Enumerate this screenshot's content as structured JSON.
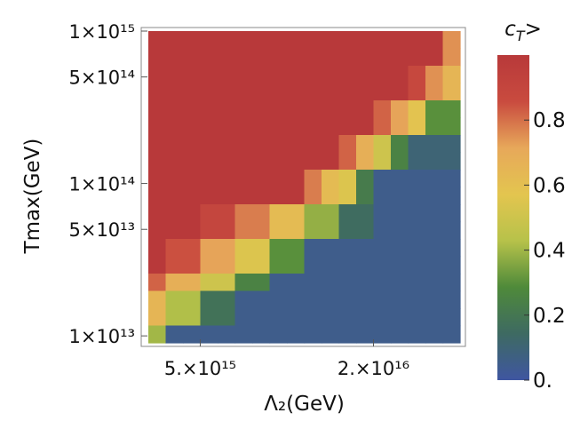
{
  "chart_data": {
    "type": "heatmap",
    "title": "",
    "xlabel": "Λ₂(GeV)",
    "ylabel": "Tmax(GeV)",
    "x_scale": "log",
    "y_scale": "log",
    "xlim": [
      3300000000000000.0,
      4e+16
    ],
    "ylim": [
      9000000000000.0,
      1000000000000000.0
    ],
    "x_ticks": [
      {
        "value": 5000000000000000.0,
        "label": "5.×10¹⁵"
      },
      {
        "value": 2e+16,
        "label": "2.×10¹⁶"
      }
    ],
    "y_ticks": [
      {
        "value": 1000000000000000.0,
        "label": "1×10¹⁵"
      },
      {
        "value": 500000000000000.0,
        "label": "5×10¹⁴"
      },
      {
        "value": 100000000000000.0,
        "label": "1×10¹⁴"
      },
      {
        "value": 50000000000000.0,
        "label": "5×10¹³"
      },
      {
        "value": 10000000000000.0,
        "label": "1×10¹³"
      }
    ],
    "colorbar": {
      "label": "c_T>",
      "range": [
        0,
        1
      ],
      "ticks": [
        {
          "value": 0.0,
          "label": "0."
        },
        {
          "value": 0.2,
          "label": "0.2"
        },
        {
          "value": 0.4,
          "label": "0.4"
        },
        {
          "value": 0.6,
          "label": "0.6"
        },
        {
          "value": 0.8,
          "label": "0.8"
        }
      ],
      "colors": [
        "#3f56a1",
        "#3e6a62",
        "#4f8a3a",
        "#b7c24a",
        "#e3c54f",
        "#e7a85a",
        "#c94b3f",
        "#b8393a"
      ]
    },
    "grid_columns": 18,
    "grid_rows": 18,
    "values_note_rows_top_to_bottom": true,
    "values": [
      [
        1,
        1,
        1,
        1,
        1,
        1,
        1,
        1,
        1,
        1,
        1,
        1,
        1,
        1,
        1,
        1,
        1,
        0.75
      ],
      [
        1,
        1,
        1,
        1,
        1,
        1,
        1,
        1,
        1,
        1,
        1,
        1,
        1,
        1,
        1,
        1,
        1,
        0.75
      ],
      [
        1,
        1,
        1,
        1,
        1,
        1,
        1,
        1,
        1,
        1,
        1,
        1,
        1,
        1,
        1,
        0.88,
        0.75,
        0.65
      ],
      [
        1,
        1,
        1,
        1,
        1,
        1,
        1,
        1,
        1,
        1,
        1,
        1,
        1,
        1,
        1,
        0.88,
        0.75,
        0.65
      ],
      [
        1,
        1,
        1,
        1,
        1,
        1,
        1,
        1,
        1,
        1,
        1,
        1,
        1,
        0.82,
        0.72,
        0.58,
        0.3,
        0.3
      ],
      [
        1,
        1,
        1,
        1,
        1,
        1,
        1,
        1,
        1,
        1,
        1,
        1,
        1,
        0.82,
        0.72,
        0.58,
        0.3,
        0.3
      ],
      [
        1,
        1,
        1,
        1,
        1,
        1,
        1,
        1,
        1,
        1,
        1,
        0.82,
        0.68,
        0.5,
        0.25,
        0.1,
        0.1,
        0.1
      ],
      [
        1,
        1,
        1,
        1,
        1,
        1,
        1,
        1,
        1,
        1,
        1,
        0.82,
        0.68,
        0.5,
        0.25,
        0.1,
        0.1,
        0.1
      ],
      [
        1,
        1,
        1,
        1,
        1,
        1,
        1,
        1,
        1,
        0.78,
        0.62,
        0.55,
        0.22,
        0.05,
        0.05,
        0.05,
        0.05,
        0.05
      ],
      [
        1,
        1,
        1,
        1,
        1,
        1,
        1,
        1,
        1,
        0.78,
        0.62,
        0.55,
        0.22,
        0.05,
        0.05,
        0.05,
        0.05,
        0.05
      ],
      [
        1,
        1,
        1,
        0.9,
        0.9,
        0.78,
        0.78,
        0.62,
        0.62,
        0.38,
        0.38,
        0.15,
        0.15,
        0.05,
        0.05,
        0.05,
        0.05,
        0.05
      ],
      [
        1,
        1,
        1,
        0.9,
        0.9,
        0.78,
        0.78,
        0.62,
        0.62,
        0.38,
        0.38,
        0.15,
        0.15,
        0.05,
        0.05,
        0.05,
        0.05,
        0.05
      ],
      [
        1,
        0.85,
        0.85,
        0.72,
        0.72,
        0.55,
        0.55,
        0.3,
        0.3,
        0.05,
        0.05,
        0.05,
        0.05,
        0.05,
        0.05,
        0.05,
        0.05,
        0.05
      ],
      [
        1,
        0.85,
        0.85,
        0.72,
        0.72,
        0.55,
        0.55,
        0.3,
        0.3,
        0.05,
        0.05,
        0.05,
        0.05,
        0.05,
        0.05,
        0.05,
        0.05,
        0.05
      ],
      [
        0.82,
        0.68,
        0.68,
        0.5,
        0.5,
        0.25,
        0.25,
        0.05,
        0.05,
        0.05,
        0.05,
        0.05,
        0.05,
        0.05,
        0.05,
        0.05,
        0.05,
        0.05
      ],
      [
        0.65,
        0.42,
        0.42,
        0.18,
        0.18,
        0.05,
        0.05,
        0.05,
        0.05,
        0.05,
        0.05,
        0.05,
        0.05,
        0.05,
        0.05,
        0.05,
        0.05,
        0.05
      ],
      [
        0.65,
        0.42,
        0.42,
        0.18,
        0.18,
        0.05,
        0.05,
        0.05,
        0.05,
        0.05,
        0.05,
        0.05,
        0.05,
        0.05,
        0.05,
        0.05,
        0.05,
        0.05
      ],
      [
        0.4,
        0.05,
        0.05,
        0.05,
        0.05,
        0.05,
        0.05,
        0.05,
        0.05,
        0.05,
        0.05,
        0.05,
        0.05,
        0.05,
        0.05,
        0.05,
        0.05,
        0.05
      ]
    ]
  }
}
